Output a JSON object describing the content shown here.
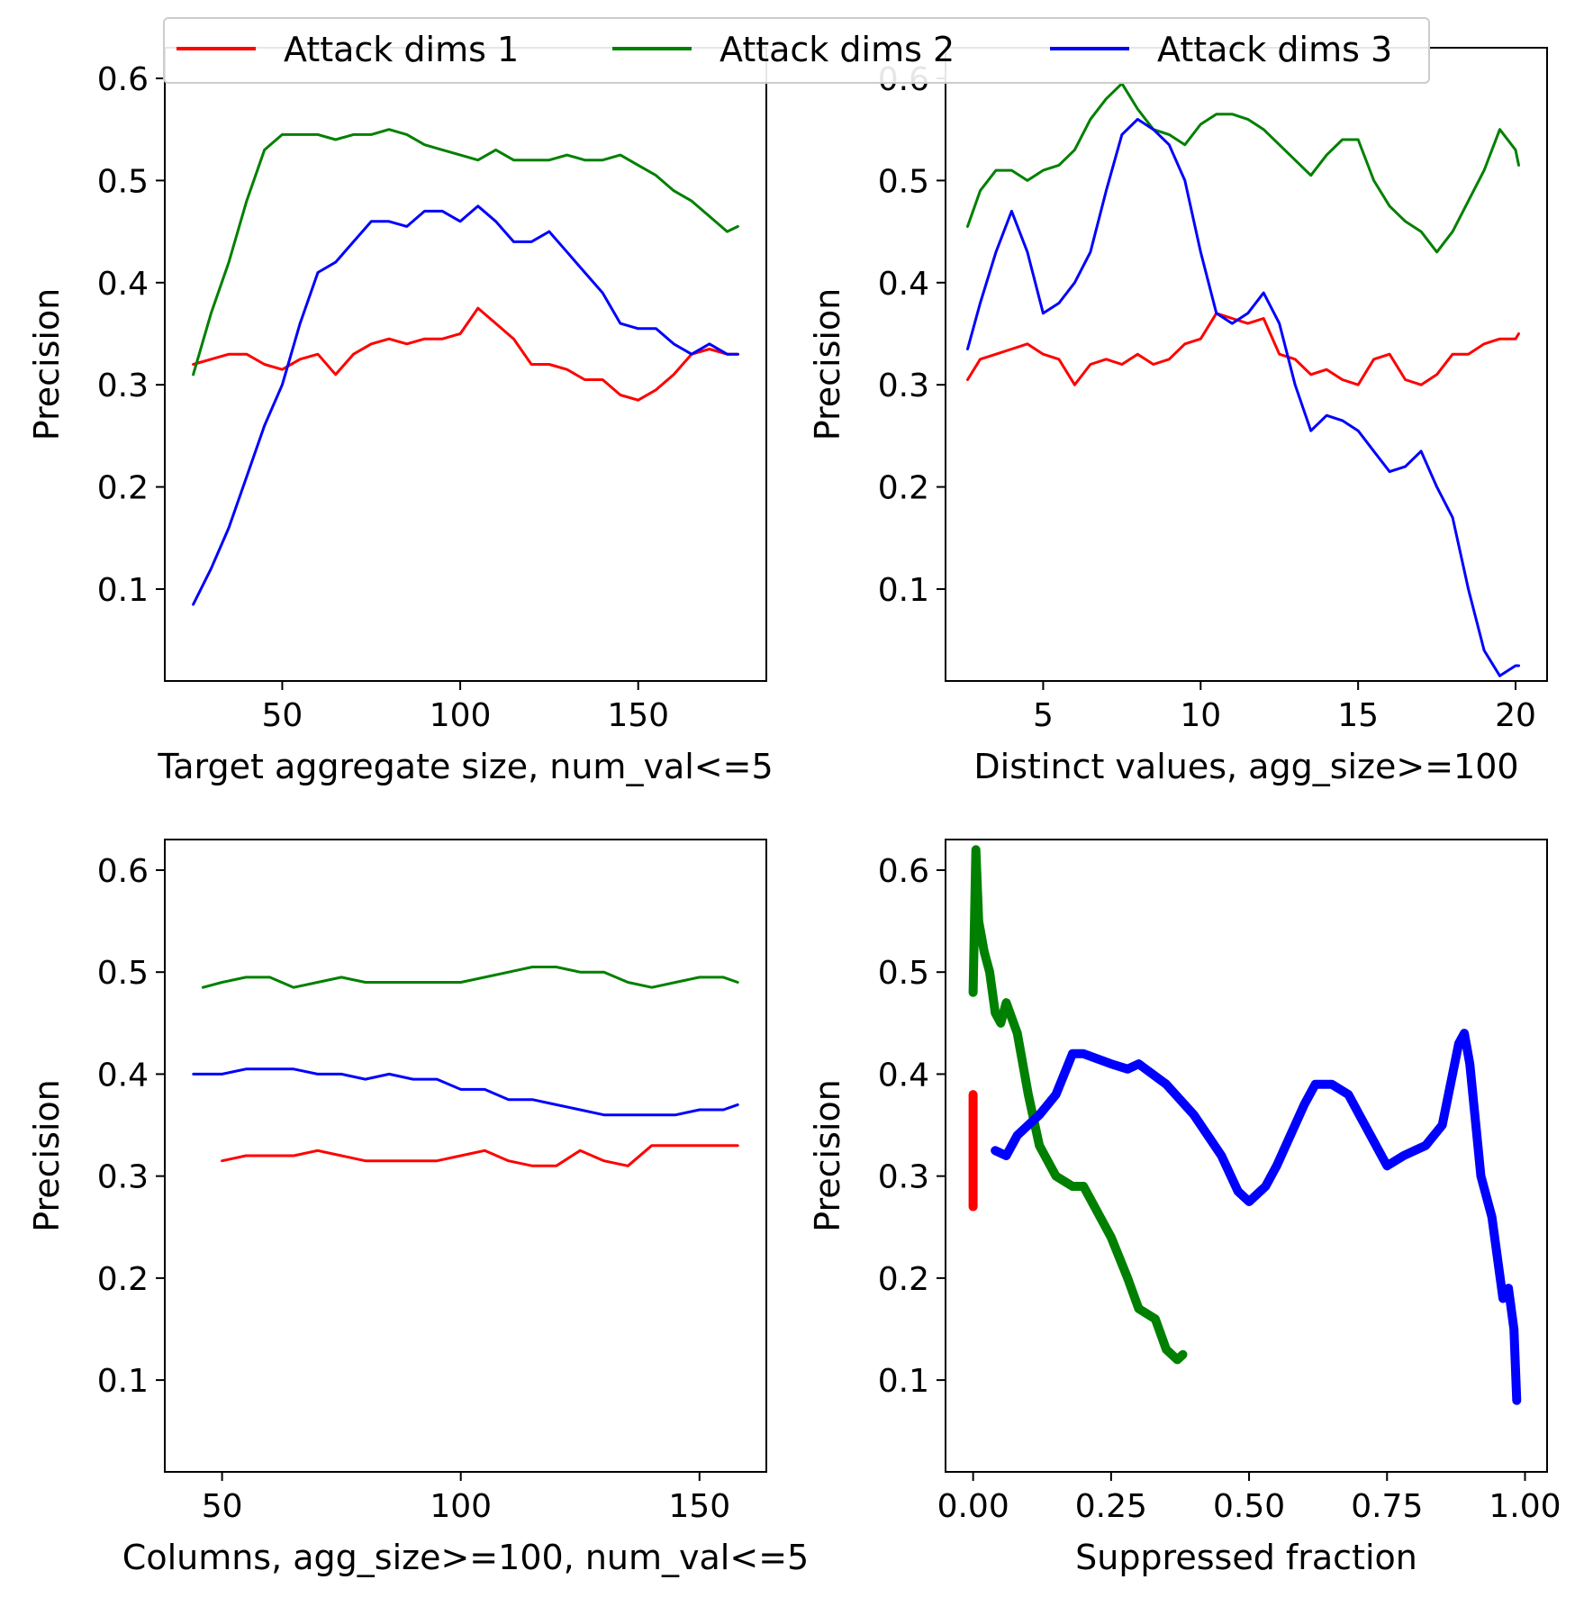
{
  "legend": {
    "entries": [
      {
        "label": "Attack dims 1",
        "color": "#ff0000"
      },
      {
        "label": "Attack dims 2",
        "color": "#008000"
      },
      {
        "label": "Attack dims 3",
        "color": "#0000ff"
      }
    ],
    "placement": "top-center spanning the upper subplots"
  },
  "chart_data": [
    {
      "type": "line",
      "xlabel": "Target aggregate size, num_val<=5",
      "ylabel": "Precision",
      "xlim": [
        17,
        186
      ],
      "ylim": [
        0.01,
        0.63
      ],
      "xticks": [
        50,
        100,
        150
      ],
      "xtick_labels": [
        "50",
        "100",
        "150"
      ],
      "yticks": [
        0.1,
        0.2,
        0.3,
        0.4,
        0.5,
        0.6
      ],
      "ytick_labels": [
        "0.1",
        "0.2",
        "0.3",
        "0.4",
        "0.5",
        "0.6"
      ],
      "grid": false,
      "linewidth": 3,
      "series": [
        {
          "name": "Attack dims 1",
          "color": "#ff0000",
          "x": [
            25,
            30,
            35,
            40,
            45,
            50,
            55,
            60,
            65,
            70,
            75,
            80,
            85,
            90,
            95,
            100,
            105,
            110,
            115,
            120,
            125,
            130,
            135,
            140,
            145,
            150,
            155,
            160,
            165,
            170,
            175,
            178
          ],
          "y": [
            0.32,
            0.325,
            0.33,
            0.33,
            0.32,
            0.315,
            0.325,
            0.33,
            0.31,
            0.33,
            0.34,
            0.345,
            0.34,
            0.345,
            0.345,
            0.35,
            0.375,
            0.36,
            0.345,
            0.32,
            0.32,
            0.315,
            0.305,
            0.305,
            0.29,
            0.285,
            0.295,
            0.31,
            0.33,
            0.335,
            0.33,
            0.33
          ]
        },
        {
          "name": "Attack dims 2",
          "color": "#008000",
          "x": [
            25,
            30,
            35,
            40,
            45,
            50,
            55,
            60,
            65,
            70,
            75,
            80,
            85,
            90,
            95,
            100,
            105,
            110,
            115,
            120,
            125,
            130,
            135,
            140,
            145,
            150,
            155,
            160,
            165,
            170,
            175,
            178
          ],
          "y": [
            0.31,
            0.37,
            0.42,
            0.48,
            0.53,
            0.545,
            0.545,
            0.545,
            0.54,
            0.545,
            0.545,
            0.55,
            0.545,
            0.535,
            0.53,
            0.525,
            0.52,
            0.53,
            0.52,
            0.52,
            0.52,
            0.525,
            0.52,
            0.52,
            0.525,
            0.515,
            0.505,
            0.49,
            0.48,
            0.465,
            0.45,
            0.455
          ]
        },
        {
          "name": "Attack dims 3",
          "color": "#0000ff",
          "x": [
            25,
            30,
            35,
            40,
            45,
            50,
            55,
            60,
            65,
            70,
            75,
            80,
            85,
            90,
            95,
            100,
            105,
            110,
            115,
            120,
            125,
            130,
            135,
            140,
            145,
            150,
            155,
            160,
            165,
            170,
            175,
            178
          ],
          "y": [
            0.085,
            0.12,
            0.16,
            0.21,
            0.26,
            0.3,
            0.36,
            0.41,
            0.42,
            0.44,
            0.46,
            0.46,
            0.455,
            0.47,
            0.47,
            0.46,
            0.475,
            0.46,
            0.44,
            0.44,
            0.45,
            0.43,
            0.41,
            0.39,
            0.36,
            0.355,
            0.355,
            0.34,
            0.33,
            0.34,
            0.33,
            0.33
          ]
        }
      ]
    },
    {
      "type": "line",
      "xlabel": "Distinct values, agg_size>=100",
      "ylabel": "Precision",
      "xlim": [
        1.9,
        21.0
      ],
      "ylim": [
        0.01,
        0.63
      ],
      "xticks": [
        5,
        10,
        15,
        20
      ],
      "xtick_labels": [
        "5",
        "10",
        "15",
        "20"
      ],
      "yticks": [
        0.1,
        0.2,
        0.3,
        0.4,
        0.5,
        0.6
      ],
      "ytick_labels": [
        "0.1",
        "0.2",
        "0.3",
        "0.4",
        "0.5",
        "0.6"
      ],
      "grid": false,
      "linewidth": 3,
      "series": [
        {
          "name": "Attack dims 1",
          "color": "#ff0000",
          "x": [
            2.6,
            3.0,
            3.5,
            4.0,
            4.5,
            5.0,
            5.5,
            6.0,
            6.5,
            7.0,
            7.5,
            8.0,
            8.5,
            9.0,
            9.5,
            10.0,
            10.5,
            11.0,
            11.5,
            12.0,
            12.5,
            13.0,
            13.5,
            14.0,
            14.5,
            15.0,
            15.5,
            16.0,
            16.5,
            17.0,
            17.5,
            18.0,
            18.5,
            19.0,
            19.5,
            20.0,
            20.1
          ],
          "y": [
            0.305,
            0.325,
            0.33,
            0.335,
            0.34,
            0.33,
            0.325,
            0.3,
            0.32,
            0.325,
            0.32,
            0.33,
            0.32,
            0.325,
            0.34,
            0.345,
            0.37,
            0.365,
            0.36,
            0.365,
            0.33,
            0.325,
            0.31,
            0.315,
            0.305,
            0.3,
            0.325,
            0.33,
            0.305,
            0.3,
            0.31,
            0.33,
            0.33,
            0.34,
            0.345,
            0.345,
            0.35
          ]
        },
        {
          "name": "Attack dims 2",
          "color": "#008000",
          "x": [
            2.6,
            3.0,
            3.5,
            4.0,
            4.5,
            5.0,
            5.5,
            6.0,
            6.5,
            7.0,
            7.5,
            8.0,
            8.5,
            9.0,
            9.5,
            10.0,
            10.5,
            11.0,
            11.5,
            12.0,
            12.5,
            13.0,
            13.5,
            14.0,
            14.5,
            15.0,
            15.5,
            16.0,
            16.5,
            17.0,
            17.5,
            18.0,
            18.5,
            19.0,
            19.5,
            20.0,
            20.1
          ],
          "y": [
            0.455,
            0.49,
            0.51,
            0.51,
            0.5,
            0.51,
            0.515,
            0.53,
            0.56,
            0.58,
            0.595,
            0.57,
            0.55,
            0.545,
            0.535,
            0.555,
            0.565,
            0.565,
            0.56,
            0.55,
            0.535,
            0.52,
            0.505,
            0.525,
            0.54,
            0.54,
            0.5,
            0.475,
            0.46,
            0.45,
            0.43,
            0.45,
            0.48,
            0.51,
            0.55,
            0.53,
            0.515
          ]
        },
        {
          "name": "Attack dims 3",
          "color": "#0000ff",
          "x": [
            2.6,
            3.0,
            3.5,
            4.0,
            4.5,
            5.0,
            5.5,
            6.0,
            6.5,
            7.0,
            7.5,
            8.0,
            8.5,
            9.0,
            9.5,
            10.0,
            10.5,
            11.0,
            11.5,
            12.0,
            12.5,
            13.0,
            13.5,
            14.0,
            14.5,
            15.0,
            15.5,
            16.0,
            16.5,
            17.0,
            17.5,
            18.0,
            18.5,
            19.0,
            19.5,
            20.0,
            20.1
          ],
          "y": [
            0.335,
            0.38,
            0.43,
            0.47,
            0.43,
            0.37,
            0.38,
            0.4,
            0.43,
            0.49,
            0.545,
            0.56,
            0.55,
            0.535,
            0.5,
            0.43,
            0.37,
            0.36,
            0.37,
            0.39,
            0.36,
            0.3,
            0.255,
            0.27,
            0.265,
            0.255,
            0.235,
            0.215,
            0.22,
            0.235,
            0.2,
            0.17,
            0.1,
            0.04,
            0.015,
            0.025,
            0.025
          ]
        }
      ]
    },
    {
      "type": "line",
      "xlabel": "Columns, agg_size>=100, num_val<=5",
      "ylabel": "Precision",
      "xlim": [
        38,
        164
      ],
      "ylim": [
        0.01,
        0.63
      ],
      "xticks": [
        50,
        100,
        150
      ],
      "xtick_labels": [
        "50",
        "100",
        "150"
      ],
      "yticks": [
        0.1,
        0.2,
        0.3,
        0.4,
        0.5,
        0.6
      ],
      "ytick_labels": [
        "0.1",
        "0.2",
        "0.3",
        "0.4",
        "0.5",
        "0.6"
      ],
      "grid": false,
      "linewidth": 3,
      "series": [
        {
          "name": "Attack dims 1",
          "color": "#ff0000",
          "x": [
            50,
            55,
            60,
            65,
            70,
            75,
            80,
            85,
            90,
            95,
            100,
            105,
            110,
            115,
            120,
            125,
            130,
            135,
            140,
            145,
            150,
            155,
            158
          ],
          "y": [
            0.315,
            0.32,
            0.32,
            0.32,
            0.325,
            0.32,
            0.315,
            0.315,
            0.315,
            0.315,
            0.32,
            0.325,
            0.315,
            0.31,
            0.31,
            0.325,
            0.315,
            0.31,
            0.33,
            0.33,
            0.33,
            0.33,
            0.33
          ]
        },
        {
          "name": "Attack dims 2",
          "color": "#008000",
          "x": [
            46,
            50,
            55,
            60,
            65,
            70,
            75,
            80,
            85,
            90,
            95,
            100,
            105,
            110,
            115,
            120,
            125,
            130,
            135,
            140,
            145,
            150,
            155,
            158
          ],
          "y": [
            0.485,
            0.49,
            0.495,
            0.495,
            0.485,
            0.49,
            0.495,
            0.49,
            0.49,
            0.49,
            0.49,
            0.49,
            0.495,
            0.5,
            0.505,
            0.505,
            0.5,
            0.5,
            0.49,
            0.485,
            0.49,
            0.495,
            0.495,
            0.49
          ]
        },
        {
          "name": "Attack dims 3",
          "color": "#0000ff",
          "x": [
            44,
            50,
            55,
            60,
            65,
            70,
            75,
            80,
            85,
            90,
            95,
            100,
            105,
            110,
            115,
            120,
            125,
            130,
            135,
            140,
            145,
            150,
            155,
            158
          ],
          "y": [
            0.4,
            0.4,
            0.405,
            0.405,
            0.405,
            0.4,
            0.4,
            0.395,
            0.4,
            0.395,
            0.395,
            0.385,
            0.385,
            0.375,
            0.375,
            0.37,
            0.365,
            0.36,
            0.36,
            0.36,
            0.36,
            0.365,
            0.365,
            0.37
          ]
        }
      ]
    },
    {
      "type": "line",
      "xlabel": "Suppressed fraction",
      "ylabel": "Precision",
      "xlim": [
        -0.05,
        1.04
      ],
      "ylim": [
        0.01,
        0.63
      ],
      "xticks": [
        0.0,
        0.25,
        0.5,
        0.75,
        1.0
      ],
      "xtick_labels": [
        "0.00",
        "0.25",
        "0.50",
        "0.75",
        "1.00"
      ],
      "yticks": [
        0.1,
        0.2,
        0.3,
        0.4,
        0.5,
        0.6
      ],
      "ytick_labels": [
        "0.1",
        "0.2",
        "0.3",
        "0.4",
        "0.5",
        "0.6"
      ],
      "grid": false,
      "linewidth": 10,
      "series": [
        {
          "name": "Attack dims 1",
          "color": "#ff0000",
          "x": [
            0.0,
            0.0
          ],
          "y": [
            0.27,
            0.38
          ]
        },
        {
          "name": "Attack dims 2",
          "color": "#008000",
          "x": [
            0.0,
            0.005,
            0.01,
            0.02,
            0.03,
            0.04,
            0.05,
            0.06,
            0.08,
            0.1,
            0.12,
            0.15,
            0.18,
            0.2,
            0.22,
            0.25,
            0.28,
            0.3,
            0.33,
            0.35,
            0.37,
            0.38
          ],
          "y": [
            0.48,
            0.62,
            0.55,
            0.52,
            0.5,
            0.46,
            0.45,
            0.47,
            0.44,
            0.38,
            0.33,
            0.3,
            0.29,
            0.29,
            0.27,
            0.24,
            0.2,
            0.17,
            0.16,
            0.13,
            0.12,
            0.125
          ]
        },
        {
          "name": "Attack dims 3",
          "color": "#0000ff",
          "x": [
            0.04,
            0.06,
            0.08,
            0.1,
            0.12,
            0.15,
            0.18,
            0.2,
            0.25,
            0.28,
            0.3,
            0.35,
            0.4,
            0.45,
            0.48,
            0.5,
            0.53,
            0.55,
            0.6,
            0.62,
            0.65,
            0.68,
            0.7,
            0.75,
            0.78,
            0.8,
            0.82,
            0.85,
            0.88,
            0.89,
            0.9,
            0.92,
            0.94,
            0.96,
            0.97,
            0.98,
            0.985
          ],
          "y": [
            0.325,
            0.32,
            0.34,
            0.35,
            0.36,
            0.38,
            0.42,
            0.42,
            0.41,
            0.405,
            0.41,
            0.39,
            0.36,
            0.32,
            0.285,
            0.275,
            0.29,
            0.31,
            0.37,
            0.39,
            0.39,
            0.38,
            0.36,
            0.31,
            0.32,
            0.325,
            0.33,
            0.35,
            0.43,
            0.44,
            0.41,
            0.3,
            0.26,
            0.18,
            0.19,
            0.15,
            0.08
          ]
        }
      ]
    }
  ]
}
